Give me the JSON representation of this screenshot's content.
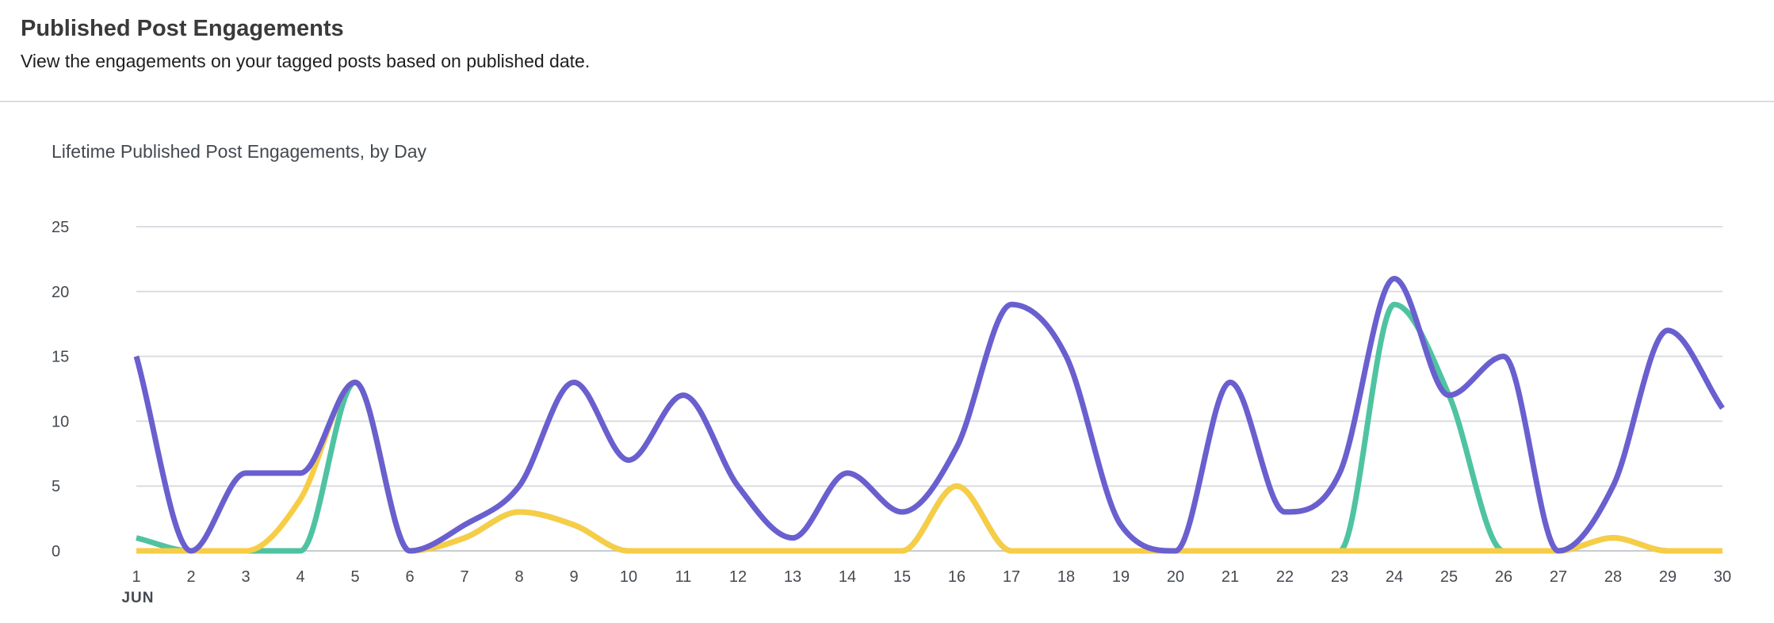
{
  "header": {
    "title": "Published Post Engagements",
    "subtitle": "View the engagements on your tagged posts based on published date."
  },
  "chart_data": {
    "type": "line",
    "title": "Lifetime Published Post Engagements, by Day",
    "xlabel": "",
    "ylabel": "",
    "x": [
      1,
      2,
      3,
      4,
      5,
      6,
      7,
      8,
      9,
      10,
      11,
      12,
      13,
      14,
      15,
      16,
      17,
      18,
      19,
      20,
      21,
      22,
      23,
      24,
      25,
      26,
      27,
      28,
      29,
      30
    ],
    "x_tick_labels": [
      "1",
      "2",
      "3",
      "4",
      "5",
      "6",
      "7",
      "8",
      "9",
      "10",
      "11",
      "12",
      "13",
      "14",
      "15",
      "16",
      "17",
      "18",
      "19",
      "20",
      "21",
      "22",
      "23",
      "24",
      "25",
      "26",
      "27",
      "28",
      "29",
      "30"
    ],
    "month_label": "JUN",
    "y_ticks": [
      0,
      5,
      10,
      15,
      20,
      25
    ],
    "ylim": [
      0,
      25
    ],
    "grid": true,
    "series": [
      {
        "color": "#4fc3a1",
        "values": [
          1,
          0,
          0,
          0,
          13,
          0,
          1,
          3,
          2,
          0,
          0,
          0,
          0,
          0,
          0,
          5,
          0,
          0,
          0,
          0,
          0,
          0,
          0,
          19,
          12,
          0,
          0,
          1,
          0,
          0
        ]
      },
      {
        "color": "#f7cd46",
        "values": [
          0,
          0,
          0,
          4,
          13,
          0,
          1,
          3,
          2,
          0,
          0,
          0,
          0,
          0,
          0,
          5,
          0,
          0,
          0,
          0,
          0,
          0,
          0,
          0,
          0,
          0,
          0,
          1,
          0,
          0
        ]
      },
      {
        "color": "#6a5fcf",
        "values": [
          15,
          0,
          6,
          6,
          13,
          0,
          2,
          5,
          13,
          7,
          12,
          5,
          1,
          6,
          3,
          8,
          19,
          15,
          2,
          0,
          13,
          3,
          6,
          21,
          12,
          15,
          0,
          5,
          17,
          11
        ]
      }
    ]
  }
}
